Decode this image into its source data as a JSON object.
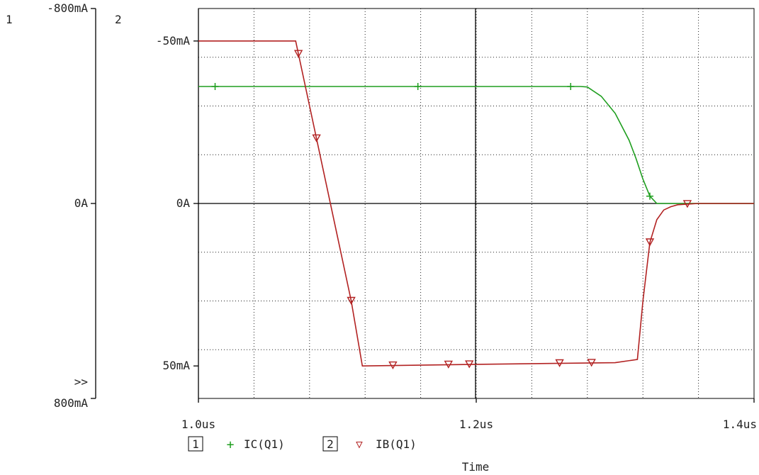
{
  "chart_data": {
    "type": "line",
    "title": "",
    "xlabel": "Time",
    "x_range": [
      1.0,
      1.4
    ],
    "x_ticks": [
      {
        "value": 1.0,
        "label": "1.0us"
      },
      {
        "value": 1.2,
        "label": "1.2us"
      },
      {
        "value": 1.4,
        "label": "1.4us"
      }
    ],
    "x_grid_step": 0.04,
    "grid": true,
    "axes": [
      {
        "id": "1",
        "label": "1",
        "range": [
          800,
          -800
        ],
        "ticks": [
          {
            "value": -800,
            "label": "-800mA"
          },
          {
            "value": 0,
            "label": "0A"
          },
          {
            "value": 800,
            "label": "800mA"
          }
        ],
        "marker": ">>"
      },
      {
        "id": "2",
        "label": "2",
        "range": [
          60,
          -60
        ],
        "ticks": [
          {
            "value": -50,
            "label": "-50mA"
          },
          {
            "value": 0,
            "label": "0A"
          },
          {
            "value": 50,
            "label": "50mA"
          }
        ],
        "grid_step": 15
      }
    ],
    "series": [
      {
        "name": "IC(Q1)",
        "axis": "1",
        "color": "#1e9e1e",
        "symbol": "+",
        "x": [
          1.0,
          1.1,
          1.2,
          1.26,
          1.275,
          1.28,
          1.29,
          1.3,
          1.31,
          1.315,
          1.32,
          1.325,
          1.33,
          1.35,
          1.4
        ],
        "y": [
          -480,
          -480,
          -480,
          -480,
          -480,
          -478,
          -440,
          -370,
          -260,
          -185,
          -100,
          -30,
          0,
          0,
          0
        ],
        "markers_x": [
          1.012,
          1.158,
          1.268,
          1.325
        ]
      },
      {
        "name": "IB(Q1)",
        "axis": "2",
        "color": "#b22222",
        "symbol": "▽",
        "x": [
          1.0,
          1.07,
          1.08,
          1.09,
          1.1,
          1.11,
          1.118,
          1.2,
          1.3,
          1.316,
          1.32,
          1.325,
          1.33,
          1.335,
          1.34,
          1.345,
          1.36,
          1.4
        ],
        "y": [
          -50,
          -50,
          -30,
          -10,
          10,
          30,
          50,
          49.5,
          49,
          48,
          30,
          12,
          5,
          2,
          1,
          0.4,
          0,
          0
        ],
        "markers_x": [
          1.072,
          1.085,
          1.11,
          1.14,
          1.18,
          1.195,
          1.26,
          1.283,
          1.325,
          1.352
        ]
      }
    ],
    "legend": {
      "position": "bottom",
      "items": [
        {
          "box": "1",
          "symbol": "+",
          "name": "IC(Q1)",
          "color": "#1e9e1e"
        },
        {
          "box": "2",
          "symbol": "▽",
          "name": "IB(Q1)",
          "color": "#b22222"
        }
      ]
    }
  }
}
